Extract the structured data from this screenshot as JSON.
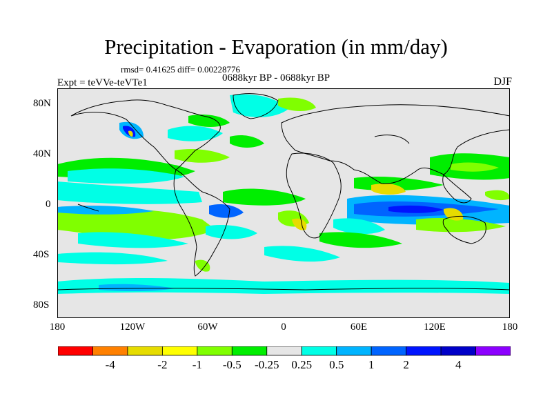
{
  "header": {
    "title": "Precipitation - Evaporation (in mm/day)",
    "stats": "rmsd= 0.41625 diff= 0.00228776",
    "experiment": "Expt = teVVe-teVTe1",
    "period": "0688kyr BP - 0688kyr BP",
    "season": "DJF"
  },
  "axes": {
    "y_ticks": [
      "80N",
      "40N",
      "0",
      "40S",
      "80S"
    ],
    "x_ticks": [
      "180",
      "120W",
      "60W",
      "0",
      "60E",
      "120E",
      "180"
    ]
  },
  "colorbar": {
    "colors": [
      "#ff0000",
      "#ff8000",
      "#e6dc00",
      "#ffff00",
      "#80ff00",
      "#00ee00",
      "#e6e6e6",
      "#00ffe6",
      "#00b4ff",
      "#0064ff",
      "#0014ff",
      "#0000c8",
      "#8c00ff"
    ],
    "labels": [
      "-4",
      "-2",
      "-1",
      "-0.5",
      "-0.25",
      "0.25",
      "0.5",
      "1",
      "2",
      "4"
    ]
  },
  "map_colors": {
    "background": "#e6e6e6",
    "coast": "#000000"
  }
}
